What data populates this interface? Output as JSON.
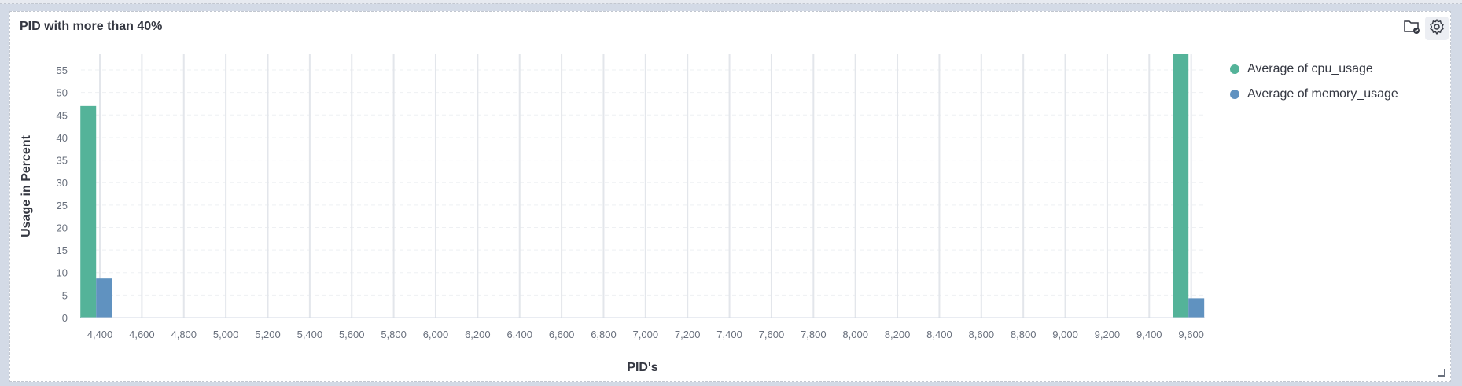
{
  "panel": {
    "title": "PID with more than 40%"
  },
  "icons": {
    "folder": "folder-check-icon",
    "settings": "gear-icon"
  },
  "colors": {
    "cpu": "#54b399",
    "memory": "#6092c0",
    "grid": "#eef0f3",
    "axis_text": "#69707d",
    "title_text": "#343741"
  },
  "chart_data": {
    "type": "bar",
    "title": "PID with more than 40%",
    "xlabel": "PID's",
    "ylabel": "Usage in Percent",
    "x_ticks": [
      "4,400",
      "4,600",
      "4,800",
      "5,000",
      "5,200",
      "5,400",
      "5,600",
      "5,800",
      "6,000",
      "6,200",
      "6,400",
      "6,600",
      "6,800",
      "7,000",
      "7,200",
      "7,400",
      "7,600",
      "7,800",
      "8,000",
      "8,200",
      "8,400",
      "8,600",
      "8,800",
      "9,000",
      "9,200",
      "9,400",
      "9,600"
    ],
    "x_tick_values": [
      4400,
      4600,
      4800,
      5000,
      5200,
      5400,
      5600,
      5800,
      6000,
      6200,
      6400,
      6600,
      6800,
      7000,
      7200,
      7400,
      7600,
      7800,
      8000,
      8200,
      8400,
      8600,
      8800,
      9000,
      9200,
      9400,
      9600
    ],
    "y_ticks": [
      0,
      5,
      10,
      15,
      20,
      25,
      30,
      35,
      40,
      45,
      50,
      55
    ],
    "ylim": [
      0,
      58.5
    ],
    "grid": true,
    "legend_position": "right",
    "categories": [
      4382,
      9587
    ],
    "series": [
      {
        "name": "Average of cpu_usage",
        "values": [
          47,
          58.7
        ]
      },
      {
        "name": "Average of memory_usage",
        "values": [
          8.7,
          4.3
        ]
      }
    ]
  }
}
